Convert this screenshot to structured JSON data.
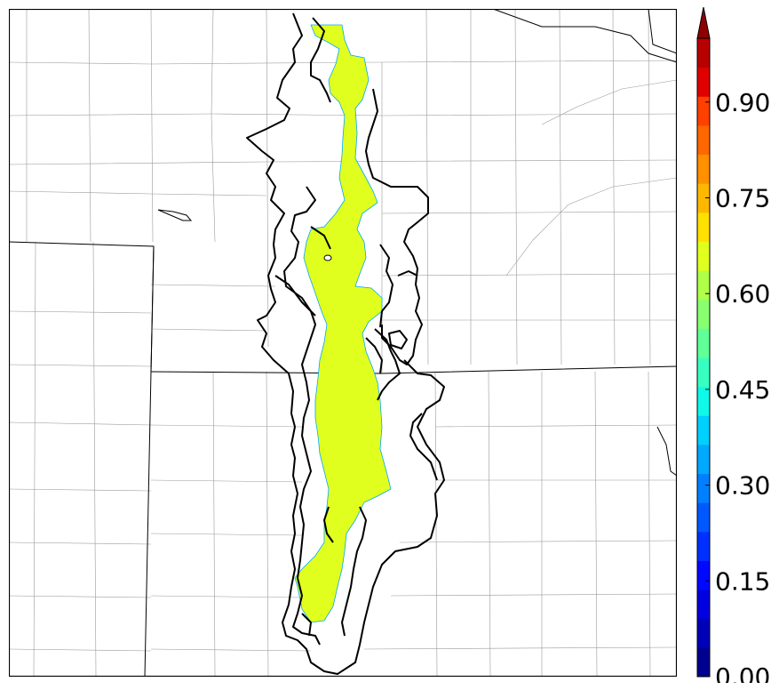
{
  "colorbar": {
    "tick_labels": [
      "0.00",
      "0.15",
      "0.30",
      "0.45",
      "0.60",
      "0.75",
      "0.90"
    ],
    "levels": [
      0.0,
      0.05,
      0.1,
      0.15,
      0.2,
      0.25,
      0.3,
      0.35,
      0.4,
      0.45,
      0.5,
      0.55,
      0.6,
      0.65,
      0.7,
      0.75,
      0.8,
      0.85,
      0.9,
      0.95,
      1.0
    ],
    "colors": [
      "#00008f",
      "#0000b8",
      "#0000e0",
      "#0008ff",
      "#0030ff",
      "#0058ff",
      "#0080ff",
      "#00a8ff",
      "#00d0ff",
      "#10f8e8",
      "#38ffc0",
      "#60ff98",
      "#88ff70",
      "#b0ff48",
      "#e0ff1e",
      "#ffe000",
      "#ffb800",
      "#ff9000",
      "#ff6800",
      "#ff4000",
      "#e00000",
      "#b80000",
      "#8f0000"
    ],
    "extend": "max"
  },
  "map": {
    "filled_region_color": "#e0ff1e",
    "filled_region_value_range": [
      0.6,
      0.65
    ],
    "contour_color": "#000000"
  }
}
